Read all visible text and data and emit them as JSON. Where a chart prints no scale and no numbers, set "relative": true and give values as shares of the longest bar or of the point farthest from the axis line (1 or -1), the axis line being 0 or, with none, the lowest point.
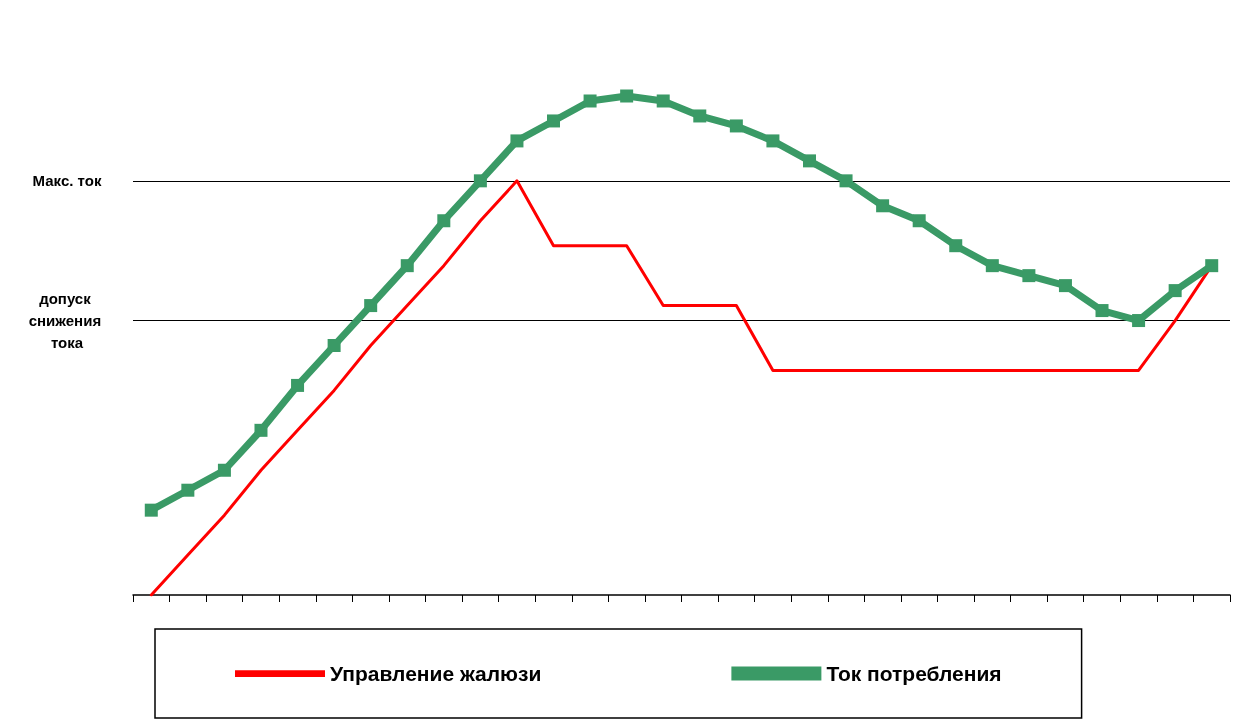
{
  "chart_data": {
    "type": "line",
    "relative": true,
    "categories": [
      null,
      null,
      null,
      null,
      null,
      null,
      null,
      null,
      null,
      null,
      null,
      null,
      null,
      null,
      null,
      null,
      null,
      null,
      null,
      null,
      null,
      null,
      null,
      null,
      null,
      null,
      null,
      null,
      null,
      null
    ],
    "series": [
      {
        "name": "Управление жалюзи",
        "color": "#ff0000",
        "marker": "none",
        "values": [
          0,
          0.08,
          0.16,
          0.25,
          0.33,
          0.41,
          0.5,
          0.58,
          0.66,
          0.75,
          0.83,
          0.7,
          0.7,
          0.7,
          0.58,
          0.58,
          0.58,
          0.45,
          0.45,
          0.45,
          0.45,
          0.45,
          0.45,
          0.45,
          0.45,
          0.45,
          0.45,
          0.45,
          0.55,
          0.66
        ]
      },
      {
        "name": "Ток потребления",
        "color": "#3a9a66",
        "marker": "square",
        "values": [
          0.17,
          0.21,
          0.25,
          0.33,
          0.42,
          0.5,
          0.58,
          0.66,
          0.75,
          0.83,
          0.91,
          0.95,
          0.99,
          1,
          0.99,
          0.96,
          0.94,
          0.91,
          0.87,
          0.83,
          0.78,
          0.75,
          0.7,
          0.66,
          0.64,
          0.62,
          0.57,
          0.55,
          0.61,
          0.66
        ]
      }
    ],
    "ref_lines": [
      {
        "axis": "y",
        "value": 0.83,
        "label": "Макс. ток",
        "color": "#000000"
      },
      {
        "axis": "y",
        "value": 0.55,
        "label": "допуск снижения тока",
        "color": "#000000"
      }
    ],
    "grid": false,
    "legend": "bottom",
    "line_style": "solid"
  }
}
